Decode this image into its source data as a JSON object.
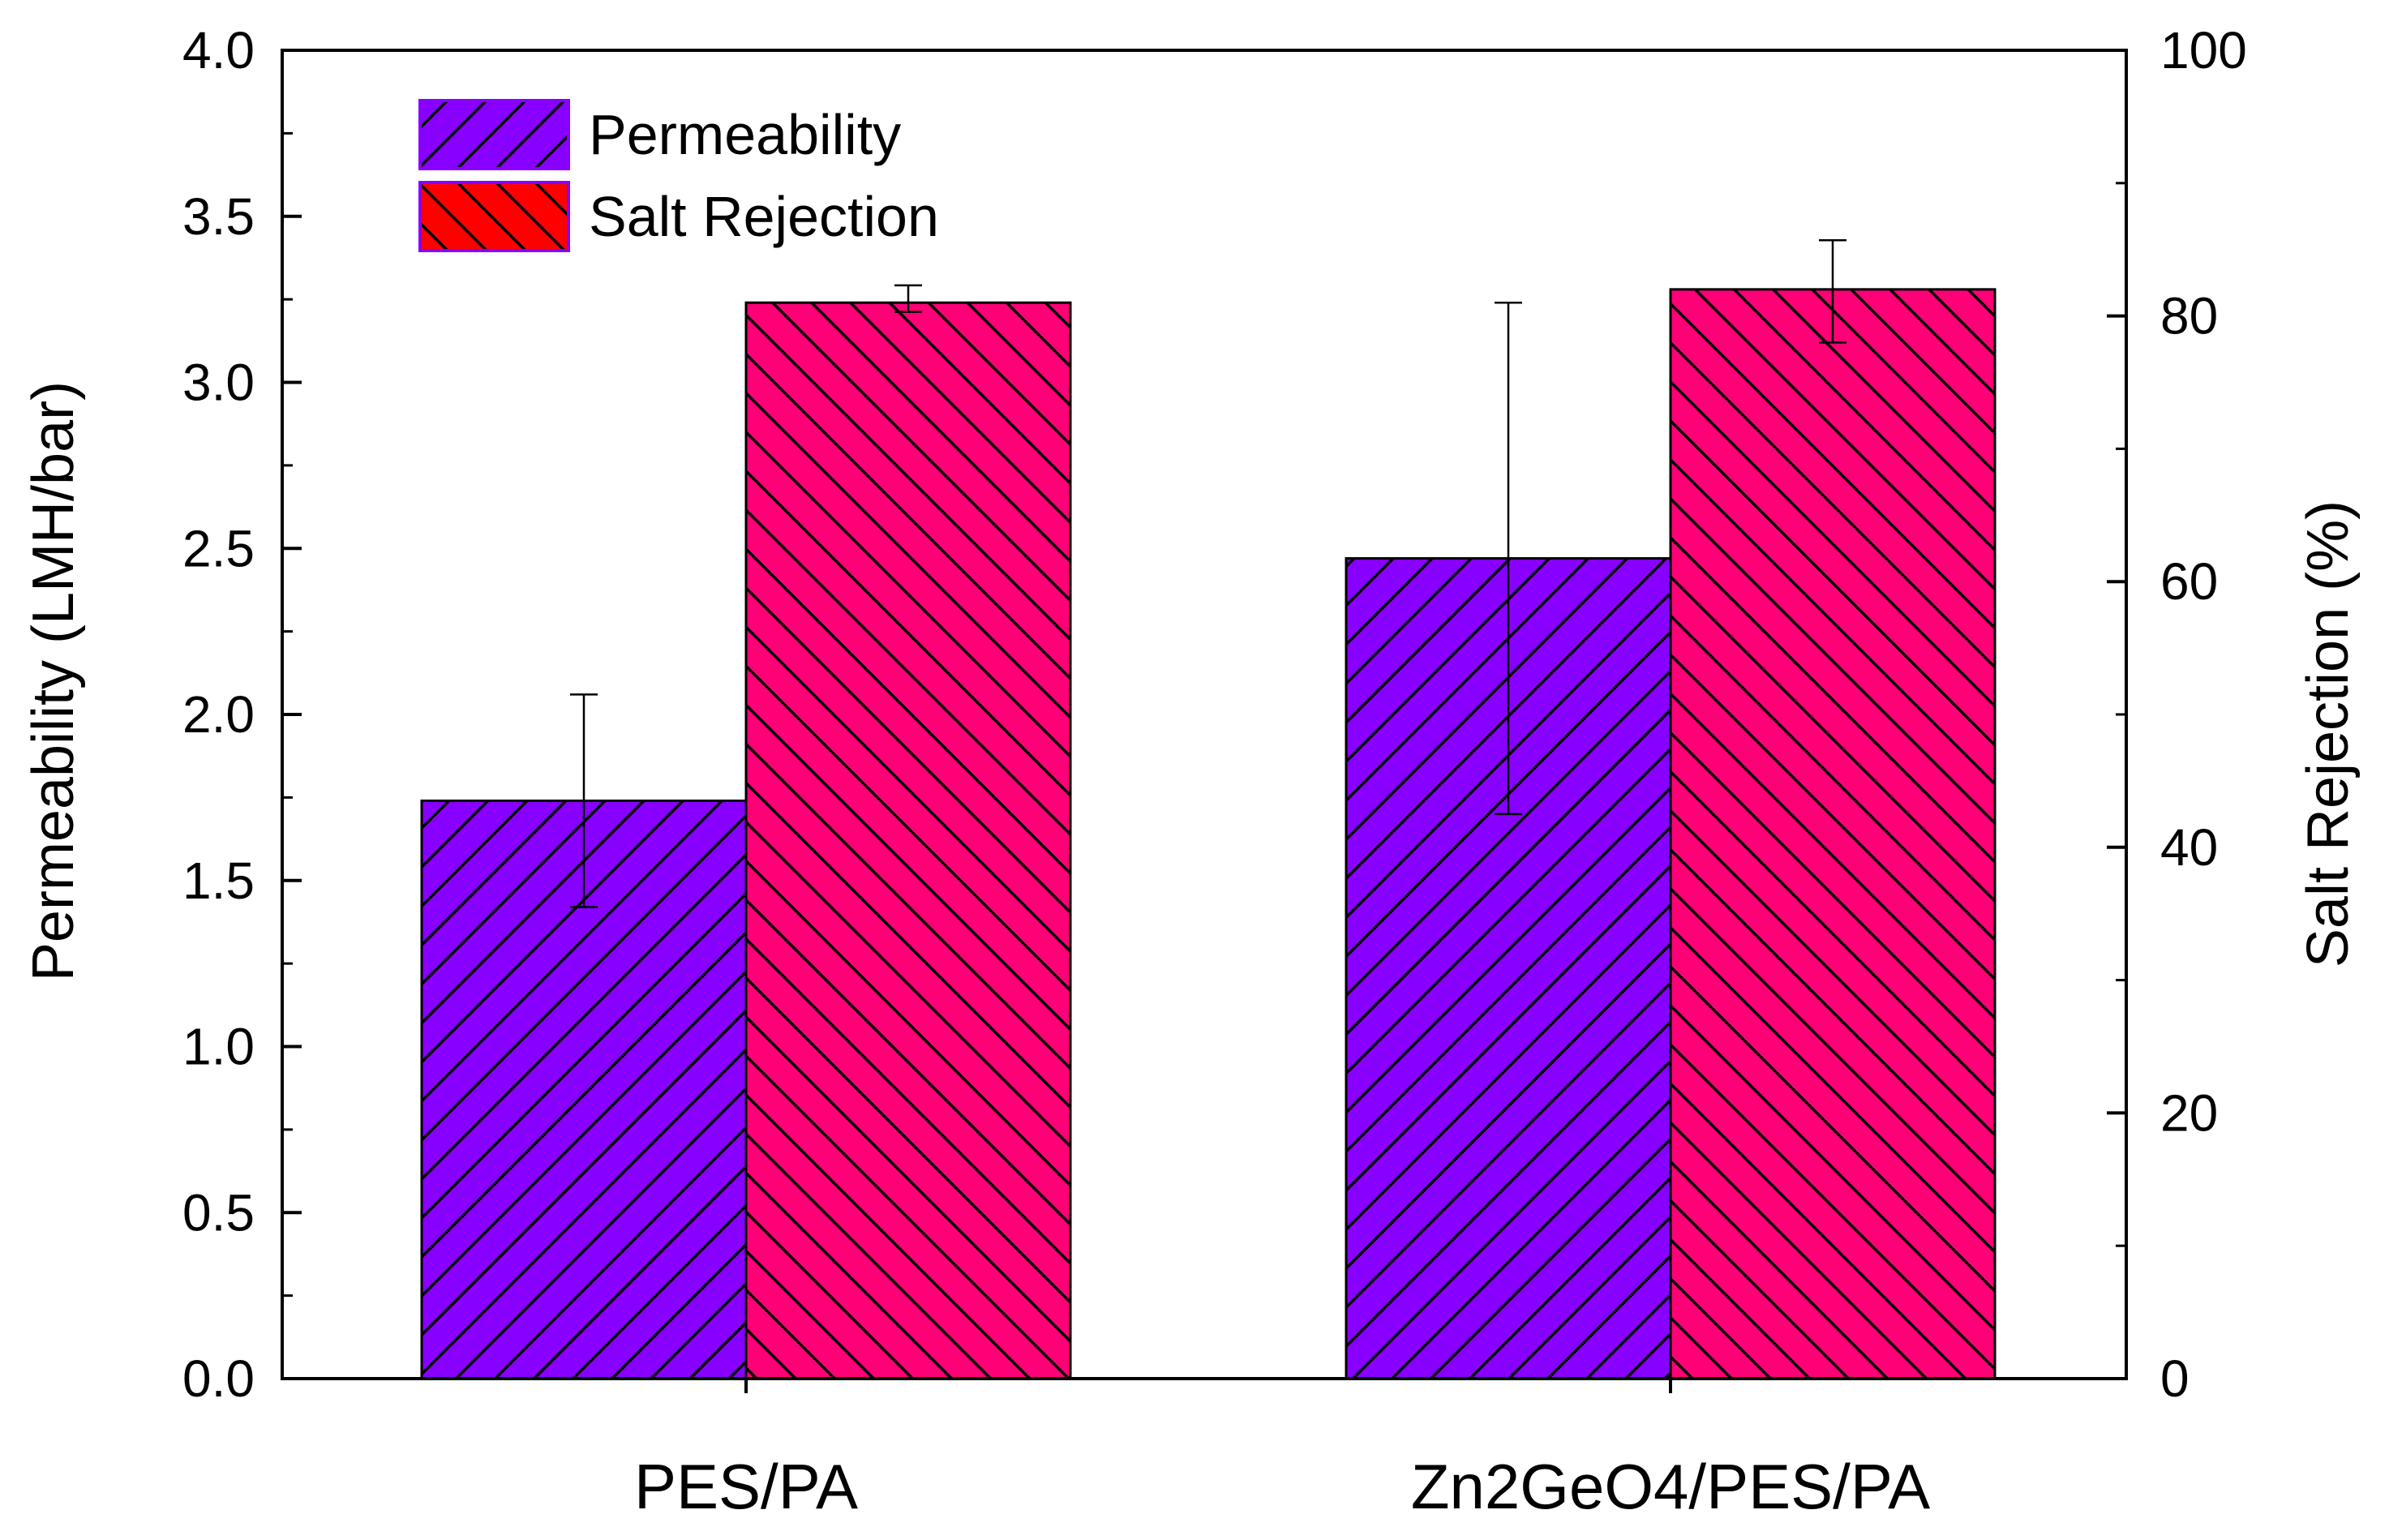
{
  "chart_data": {
    "type": "bar",
    "categories": [
      "PES/PA",
      "Zn2GeO4/PES/PA"
    ],
    "series": [
      {
        "name": "Permeability",
        "axis": "left",
        "color": "#8800ff",
        "values": [
          1.74,
          2.47
        ],
        "errors": [
          [
            1.42,
            2.06
          ],
          [
            1.7,
            3.24
          ]
        ]
      },
      {
        "name": "Salt Rejection",
        "axis": "right",
        "color": "#ff0077",
        "values": [
          81,
          82
        ],
        "errors": [
          [
            80.3,
            82.3
          ],
          [
            78.0,
            85.7
          ]
        ]
      }
    ],
    "left_axis": {
      "label": "Permeability (LMH/bar)",
      "ylim": [
        0,
        4.0
      ],
      "ticks": [
        "0.0",
        "0.5",
        "1.0",
        "1.5",
        "2.0",
        "2.5",
        "3.0",
        "3.5",
        "4.0"
      ]
    },
    "right_axis": {
      "label": "Salt Rejection (%)",
      "ylim": [
        0,
        100
      ],
      "ticks": [
        "0",
        "20",
        "40",
        "60",
        "80",
        "100"
      ]
    },
    "legend": {
      "position": "top-left",
      "entries": [
        "Permeability",
        "Salt Rejection"
      ]
    }
  }
}
